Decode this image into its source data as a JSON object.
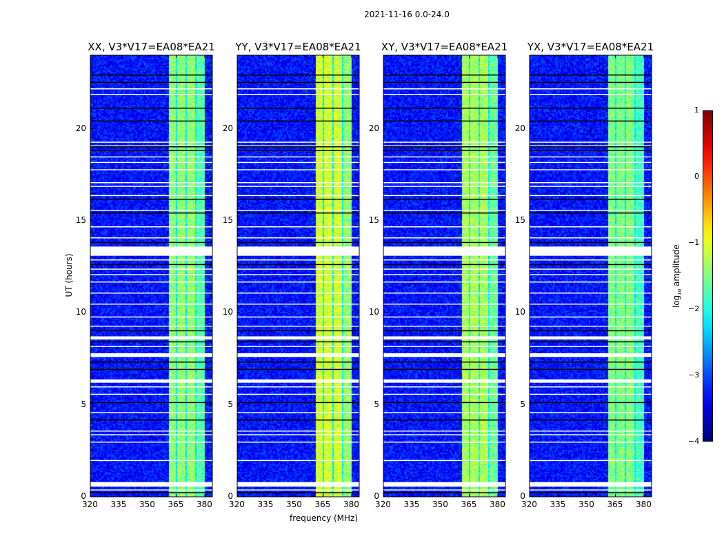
{
  "suptitle": "2021-11-16 0.0-24.0",
  "chart_data": {
    "type": "heatmap",
    "xlabel": "frequency (MHz)",
    "ylabel": "UT (hours)",
    "xlim": [
      320,
      384
    ],
    "ylim": [
      0,
      24
    ],
    "xticks": [
      "320",
      "335",
      "350",
      "365",
      "380"
    ],
    "xtick_values": [
      320,
      335,
      350,
      365,
      380
    ],
    "yticks": [
      "0",
      "5",
      "10",
      "15",
      "20"
    ],
    "ytick_values": [
      0,
      5,
      10,
      15,
      20
    ],
    "panels": [
      {
        "title": "XX, V3*V17=EA08*EA21",
        "band_level": -1.4,
        "background_level": -3.3
      },
      {
        "title": "YY, V3*V17=EA08*EA21",
        "band_level": -1.1,
        "background_level": -3.3
      },
      {
        "title": "XY, V3*V17=EA08*EA21",
        "band_level": -1.3,
        "background_level": -3.3
      },
      {
        "title": "YX, V3*V17=EA08*EA21",
        "band_level": -1.5,
        "background_level": -3.3
      }
    ],
    "bands_mhz": [
      [
        360.5,
        364.8
      ],
      [
        365.2,
        369.6
      ],
      [
        370.1,
        374.8
      ],
      [
        375.3,
        380.0
      ]
    ],
    "gap_level": -2.2,
    "flagged_hours": [
      [
        13.1,
        13.6
      ],
      [
        8.55,
        8.72
      ],
      [
        7.6,
        7.8
      ],
      [
        6.2,
        6.38
      ],
      [
        0.55,
        0.8
      ]
    ],
    "thin_flagged_hours": [
      22.2,
      21.9,
      19.3,
      19.1,
      18.5,
      18.2,
      17.8,
      17.1,
      16.9,
      16.4,
      15.6,
      14.7,
      14.1,
      12.9,
      12.4,
      12.1,
      11.7,
      11.1,
      10.5,
      9.8,
      9.3,
      8.2,
      6.0,
      5.6,
      4.6,
      3.6,
      3.4,
      3.0,
      2.0,
      0.4
    ],
    "black_hours": [
      22.95,
      22.55,
      21.15,
      20.45,
      19.05,
      18.85,
      16.2,
      15.45,
      13.85,
      12.65,
      9.05,
      8.45,
      7.35,
      6.95,
      5.15,
      4.2,
      0.25
    ],
    "colorbar": {
      "label": "log10 amplitude",
      "label_main": "log",
      "label_sub": "10",
      "label_rest": " amplitude",
      "ticks": [
        "1",
        "0",
        "−1",
        "−2",
        "−3",
        "−4"
      ],
      "tick_values": [
        1,
        0,
        -1,
        -2,
        -3,
        -4
      ],
      "range": [
        -4,
        1
      ],
      "colormap": "jet"
    }
  }
}
